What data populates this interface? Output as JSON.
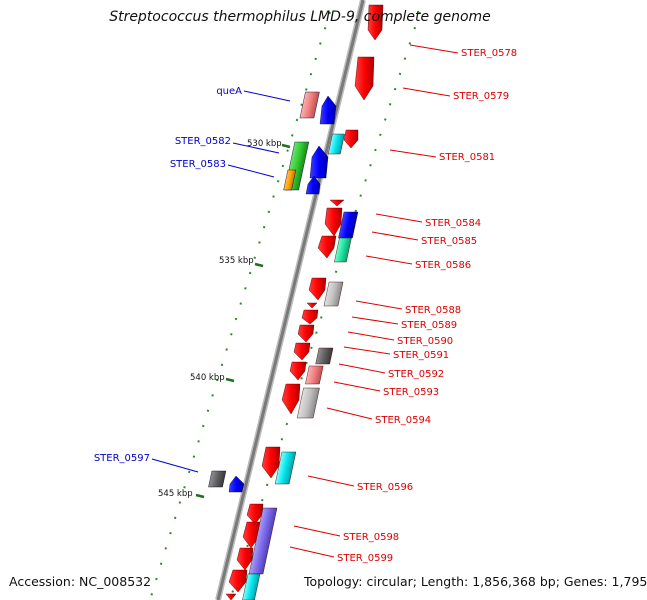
{
  "title": "Streptococcus thermophilus LMD-9, complete genome",
  "footer": {
    "accession": "Accession: NC_008532",
    "topology": "Topology: circular; Length: 1,856,368 bp; Genes: 1,795"
  },
  "colors": {
    "backbone": "#808080",
    "tick": "#2e8b2e",
    "forward_label": "#0000cc",
    "reverse_label": "#dd0000"
  },
  "scale_ticks": [
    {
      "label": "530 kbp"
    },
    {
      "label": "535 kbp"
    },
    {
      "label": "540 kbp"
    },
    {
      "label": "545 kbp"
    }
  ],
  "labels": {
    "left": [
      "queA",
      "STER_0582",
      "STER_0583",
      "STER_0597"
    ],
    "right": [
      "STER_0578",
      "STER_0579",
      "STER_0581",
      "STER_0584",
      "STER_0585",
      "STER_0586",
      "STER_0588",
      "STER_0589",
      "STER_0590",
      "STER_0591",
      "STER_0592",
      "STER_0593",
      "STER_0594",
      "STER_0596",
      "STER_0598",
      "STER_0599"
    ]
  }
}
